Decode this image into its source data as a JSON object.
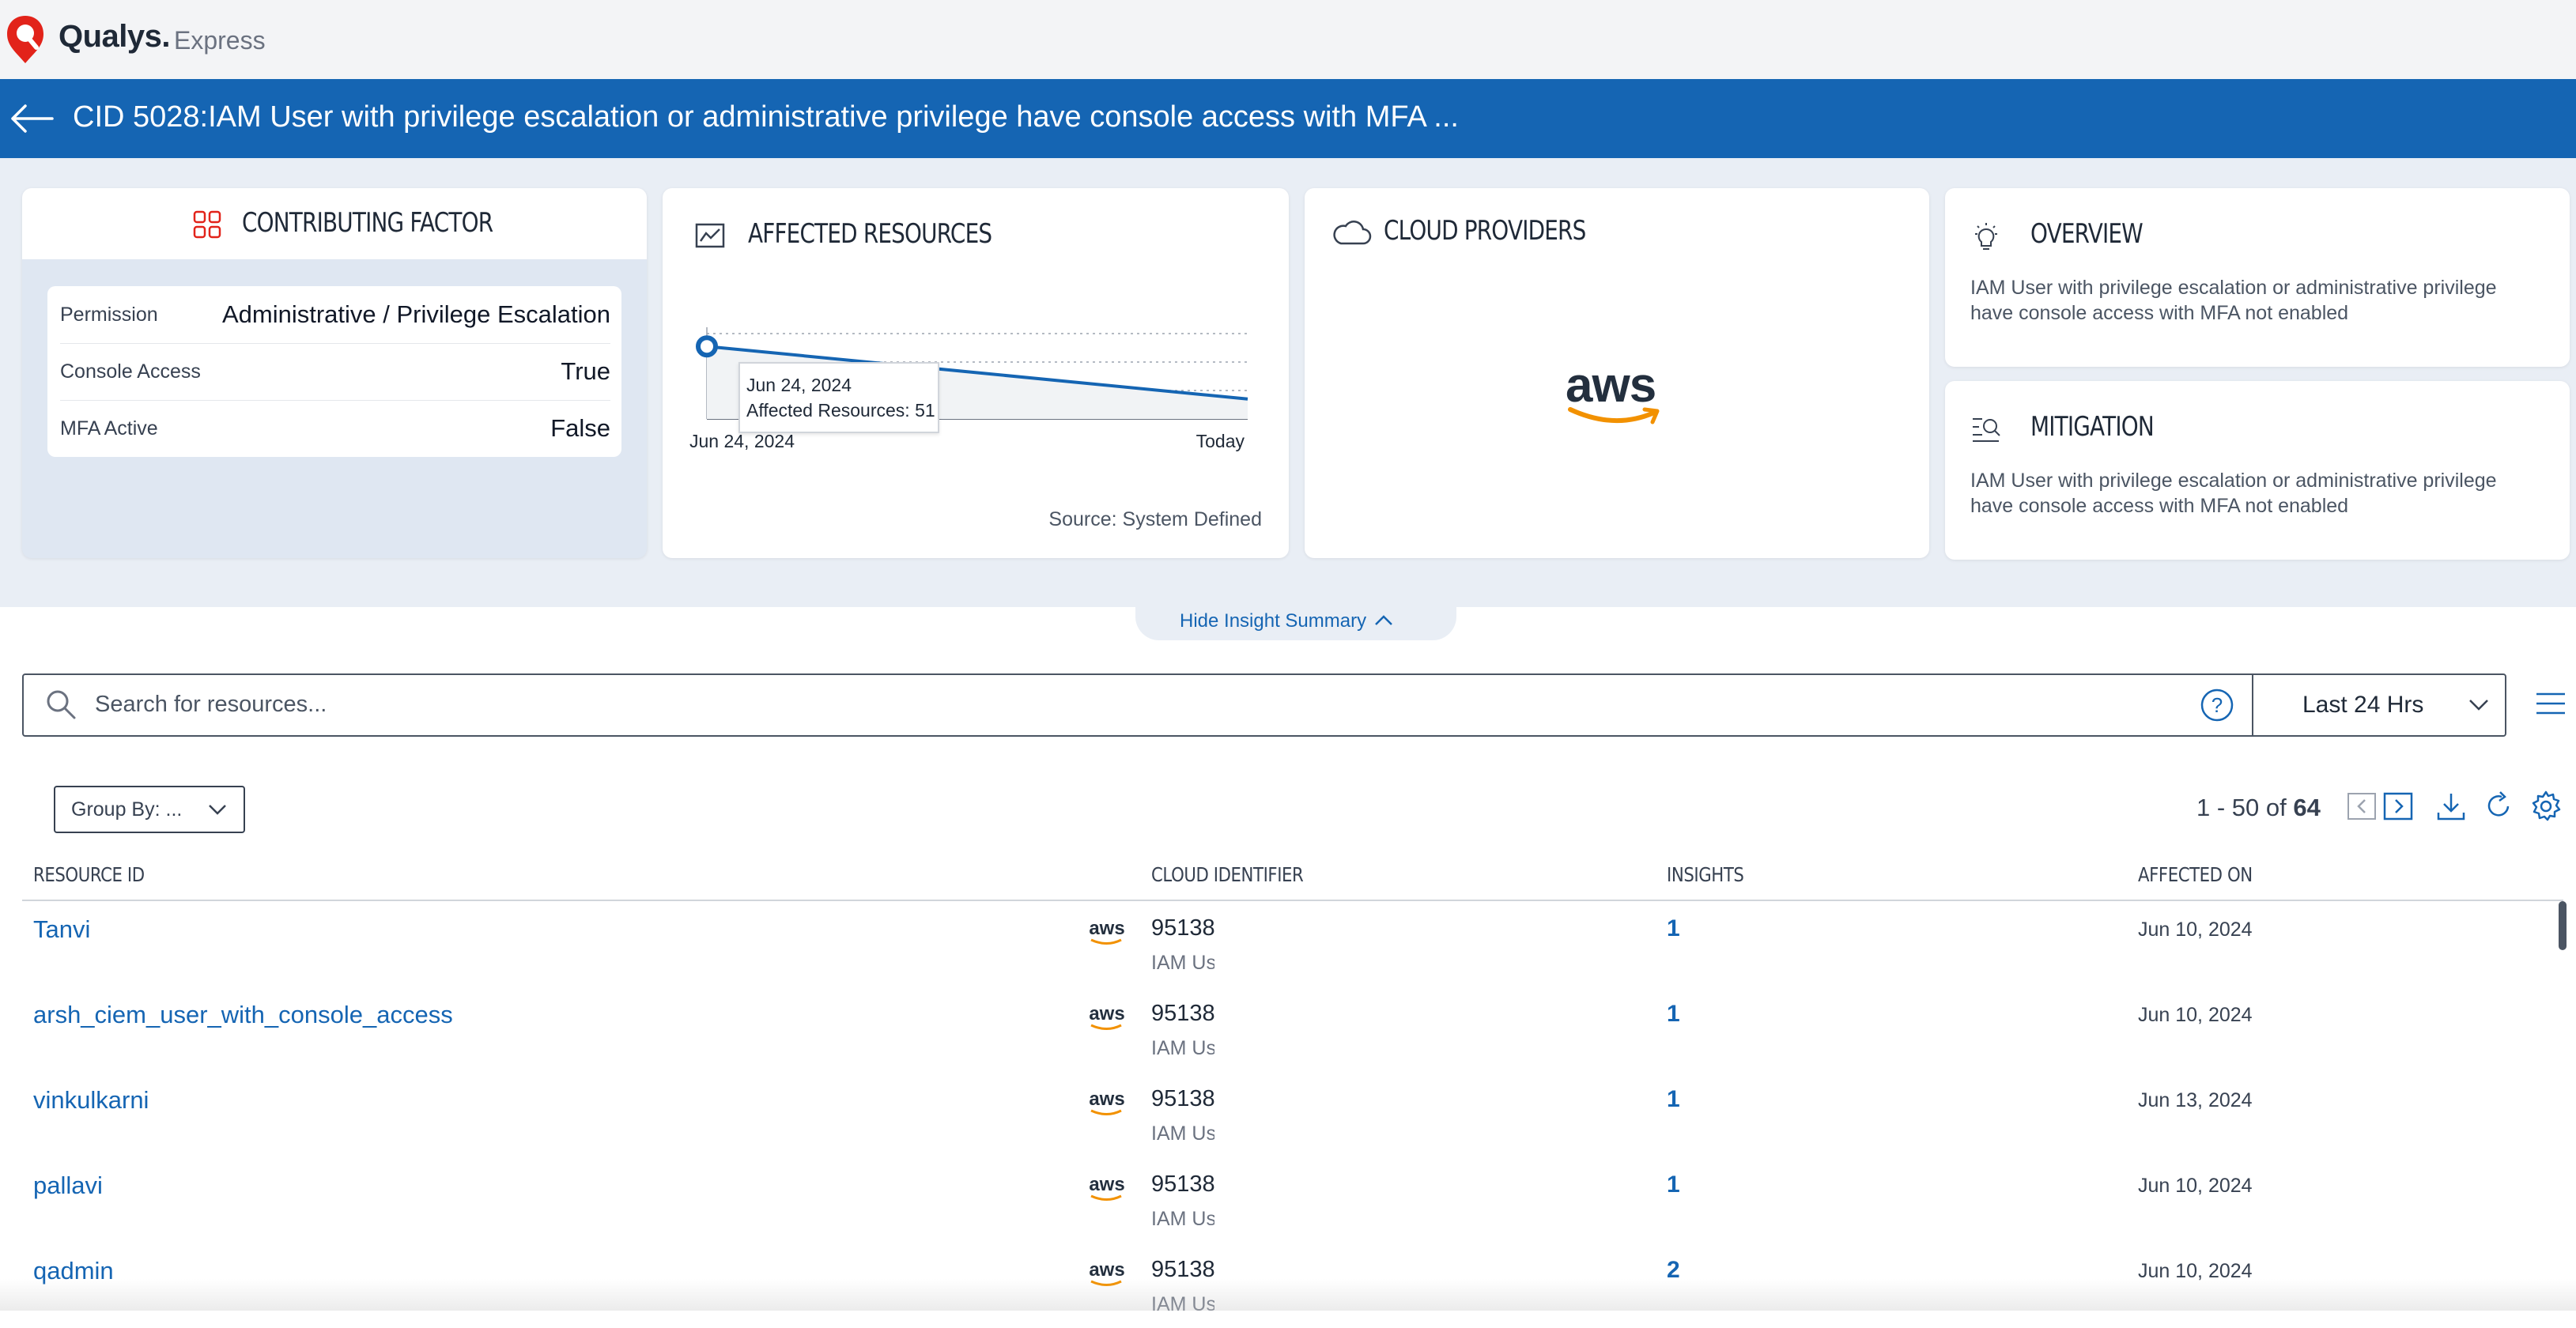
{
  "app": {
    "brand": "Qualys.",
    "brand_sub": "Express"
  },
  "title": "CID 5028:IAM User with privilege escalation or administrative privilege have console access with MFA ...",
  "contributing_factor": {
    "title": "CONTRIBUTING FACTOR",
    "rows": [
      {
        "key": "Permission",
        "value": "Administrative / Privilege Escalation"
      },
      {
        "key": "Console Access",
        "value": "True"
      },
      {
        "key": "MFA Active",
        "value": "False"
      }
    ]
  },
  "affected_resources": {
    "title": "AFFECTED RESOURCES",
    "tooltip_date": "Jun 24, 2024",
    "tooltip_value": "Affected Resources: 51",
    "source": "Source: System Defined"
  },
  "chart_data": {
    "type": "line",
    "title": "",
    "xlabel": "",
    "ylabel": "",
    "x": [
      "Jun 24, 2024",
      "Today"
    ],
    "series": [
      {
        "values": [
          51,
          14
        ]
      }
    ],
    "grid": true
  },
  "cloud_providers": {
    "title": "CLOUD PROVIDERS",
    "logo_text": "aws"
  },
  "overview": {
    "title": "OVERVIEW",
    "text": "IAM User with privilege escalation or administrative privilege have console access with MFA not enabled"
  },
  "mitigation": {
    "title": "MITIGATION",
    "text": "IAM User with privilege escalation or administrative privilege have console access with MFA not enabled"
  },
  "hide_summary_label": "Hide Insight Summary",
  "search": {
    "placeholder": "Search for resources...",
    "value": ""
  },
  "time_range": "Last 24 Hrs",
  "group_by": "Group By: ...",
  "pager": {
    "range": "1 - 50 of",
    "total": "64"
  },
  "table": {
    "columns": [
      "RESOURCE ID",
      "CLOUD IDENTIFIER",
      "INSIGHTS",
      "AFFECTED ON"
    ],
    "rows": [
      {
        "resource_id": "Tanvi",
        "cloud_id": "95138",
        "cloud_type": "IAM Us",
        "insights": "1",
        "affected_on": "Jun 10, 2024"
      },
      {
        "resource_id": "arsh_ciem_user_with_console_access",
        "cloud_id": "95138",
        "cloud_type": "IAM Us",
        "insights": "1",
        "affected_on": "Jun 10, 2024"
      },
      {
        "resource_id": "vinkulkarni",
        "cloud_id": "95138",
        "cloud_type": "IAM Us",
        "insights": "1",
        "affected_on": "Jun 13, 2024"
      },
      {
        "resource_id": "pallavi",
        "cloud_id": "95138",
        "cloud_type": "IAM Us",
        "insights": "1",
        "affected_on": "Jun 10, 2024"
      },
      {
        "resource_id": "qadmin",
        "cloud_id": "95138",
        "cloud_type": "IAM Us",
        "insights": "2",
        "affected_on": "Jun 10, 2024"
      }
    ]
  },
  "colors": {
    "accent": "#1565b3",
    "brand_red": "#e2231a",
    "aws_orange": "#f29100"
  }
}
